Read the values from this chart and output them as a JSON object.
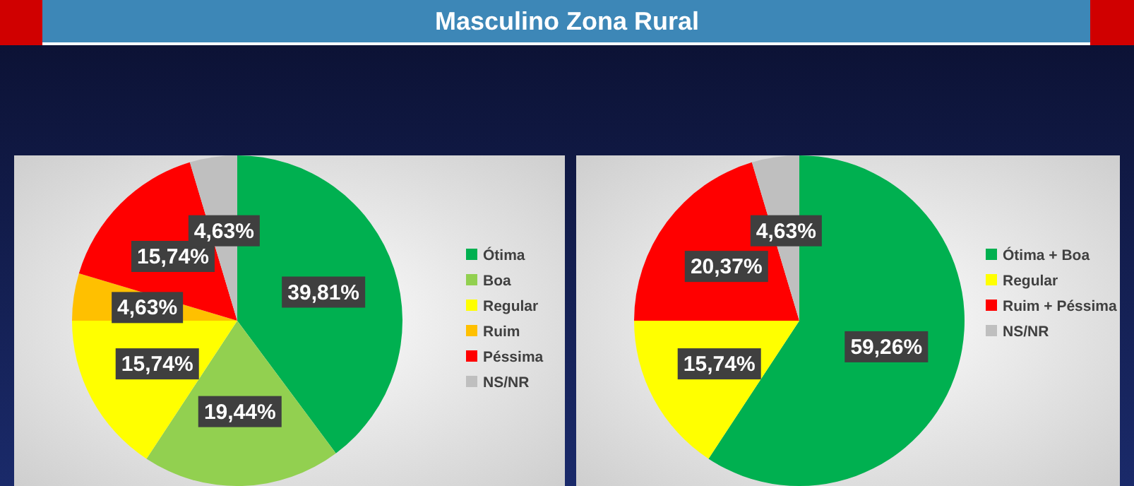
{
  "chart_data": [
    {
      "type": "pie",
      "title": "Masculino Zona Rural",
      "categories": [
        "Ótima",
        "Boa",
        "Regular",
        "Ruim",
        "Péssima",
        "NS/NR"
      ],
      "values": [
        39.81,
        19.44,
        15.74,
        4.63,
        15.74,
        4.63
      ],
      "colors": [
        "#00b050",
        "#92d050",
        "#ffff00",
        "#ffc000",
        "#ff0000",
        "#bfbfbf"
      ],
      "value_labels": [
        "39,81%",
        "19,44%",
        "15,74%",
        "4,63%",
        "15,74%",
        "4,63%"
      ],
      "legend": "right"
    },
    {
      "type": "pie",
      "categories": [
        "Ótima + Boa",
        "Regular",
        "Ruim + Péssima",
        "NS/NR"
      ],
      "values": [
        59.26,
        15.74,
        20.37,
        4.63
      ],
      "colors": [
        "#00b050",
        "#ffff00",
        "#ff0000",
        "#bfbfbf"
      ],
      "value_labels": [
        "59,26%",
        "15,74%",
        "20,37%",
        "4,63%"
      ],
      "legend": "right"
    }
  ]
}
